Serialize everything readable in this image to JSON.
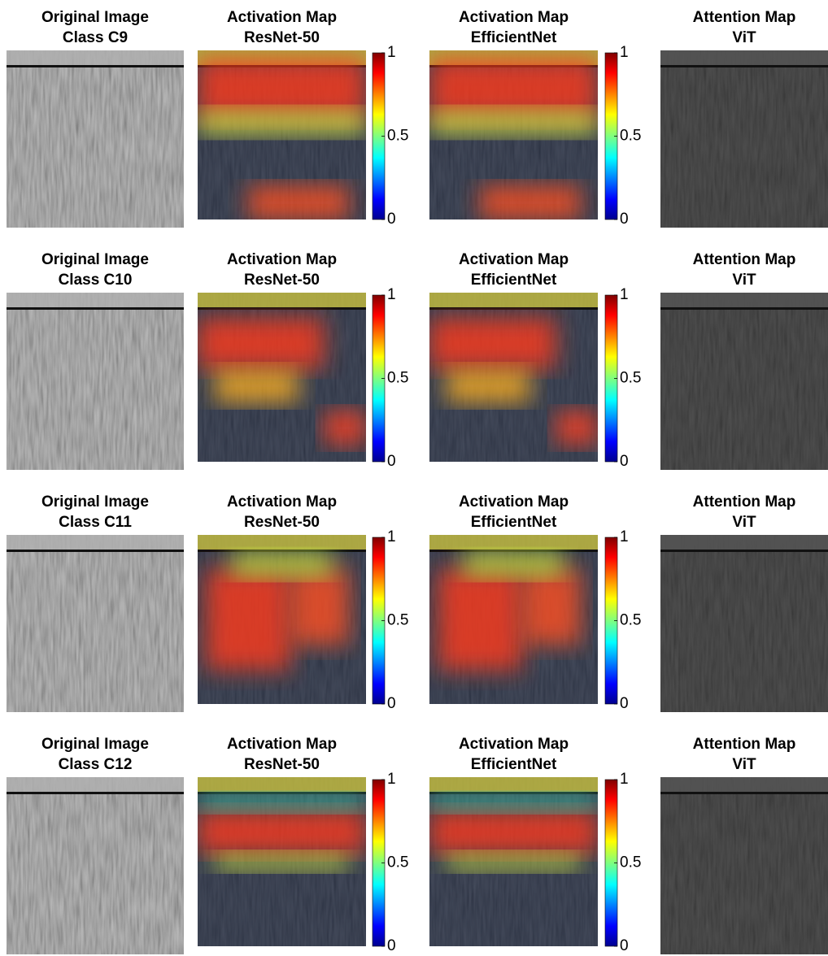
{
  "rows": [
    {
      "panels": [
        {
          "title": [
            "Original Image",
            "Class C9"
          ]
        },
        {
          "title": [
            "Activation Map",
            "ResNet-50"
          ],
          "colorbar": {
            "clim": [
              0,
              1
            ],
            "ticks": [
              0,
              0.5,
              1
            ]
          }
        },
        {
          "title": [
            "Activation Map",
            "EfficientNet"
          ],
          "colorbar": {
            "clim": [
              0,
              1
            ],
            "ticks": [
              0,
              0.5,
              1
            ]
          }
        },
        {
          "title": [
            "Attention Map",
            "ViT"
          ]
        }
      ]
    },
    {
      "panels": [
        {
          "title": [
            "Original Image",
            "Class C10"
          ]
        },
        {
          "title": [
            "Activation Map",
            "ResNet-50"
          ],
          "colorbar": {
            "clim": [
              0,
              1
            ],
            "ticks": [
              0,
              0.5,
              1
            ]
          }
        },
        {
          "title": [
            "Activation Map",
            "EfficientNet"
          ],
          "colorbar": {
            "clim": [
              0,
              1
            ],
            "ticks": [
              0,
              0.5,
              1
            ]
          }
        },
        {
          "title": [
            "Attention Map",
            "ViT"
          ]
        }
      ]
    },
    {
      "panels": [
        {
          "title": [
            "Original Image",
            "Class C11"
          ]
        },
        {
          "title": [
            "Activation Map",
            "ResNet-50"
          ],
          "colorbar": {
            "clim": [
              0,
              1
            ],
            "ticks": [
              0,
              0.5,
              1
            ]
          }
        },
        {
          "title": [
            "Activation Map",
            "EfficientNet"
          ],
          "colorbar": {
            "clim": [
              0,
              1
            ],
            "ticks": [
              0,
              0.5,
              1
            ]
          }
        },
        {
          "title": [
            "Attention Map",
            "ViT"
          ]
        }
      ]
    },
    {
      "panels": [
        {
          "title": [
            "Original Image",
            "Class C12"
          ]
        },
        {
          "title": [
            "Activation Map",
            "ResNet-50"
          ],
          "colorbar": {
            "clim": [
              0,
              1
            ],
            "ticks": [
              0,
              0.5,
              1
            ]
          }
        },
        {
          "title": [
            "Activation Map",
            "EfficientNet"
          ],
          "colorbar": {
            "clim": [
              0,
              1
            ],
            "ticks": [
              0,
              0.5,
              1
            ]
          }
        },
        {
          "title": [
            "Attention Map",
            "ViT"
          ]
        }
      ]
    }
  ]
}
